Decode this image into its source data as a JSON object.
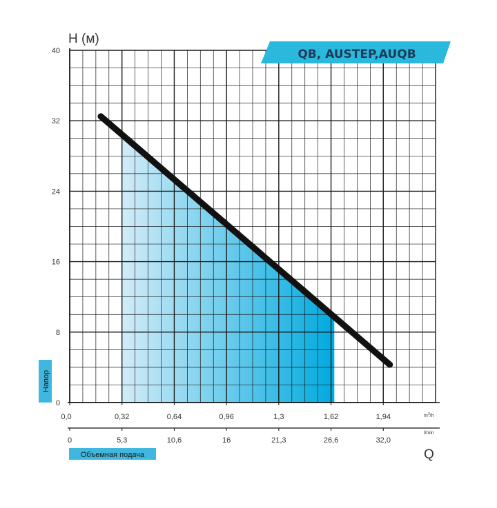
{
  "chart_data": {
    "type": "line",
    "title": "QB, AUSTEP,AUQB",
    "ylabel": "H (м)",
    "xlabel": "Q",
    "y_side_label": "Напор",
    "x_side_label": "Объемная подача",
    "ylim": [
      0,
      40
    ],
    "y_ticks": [
      "0",
      "8",
      "16",
      "24",
      "32",
      "40"
    ],
    "x_ticks_m3h": [
      "0,0",
      "0,32",
      "0,64",
      "0,96",
      "1,3",
      "1,62",
      "1,94"
    ],
    "x_unit_m3h_base": "m",
    "x_unit_m3h_sup": "3",
    "x_unit_m3h_tail": "/h",
    "x_ticks_lmin": [
      "0",
      "5,3",
      "10,6",
      "16",
      "21,3",
      "26,6",
      "32,0"
    ],
    "x_unit_lmin": "l/min",
    "xlim_m3h": [
      0,
      2.24
    ],
    "series": [
      {
        "x": [
          0.19,
          1.96
        ],
        "y": [
          32.5,
          4.3
        ]
      }
    ],
    "working_range_m3h": [
      0.32,
      1.62
    ],
    "grid": true,
    "colors": {
      "curve": "#111111",
      "fill_light": "#d3ecf8",
      "fill_dark": "#00aadf",
      "badge": "#2ab8dc",
      "label_box": "#3fb7de",
      "grid": "#1a1a1a"
    }
  }
}
